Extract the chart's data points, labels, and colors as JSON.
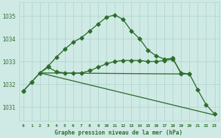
{
  "title": "Graphe pression niveau de la mer (hPa)",
  "background_color": "#cfe9e5",
  "grid_color": "#b0d4cc",
  "line_color": "#2d6e2d",
  "xlim": [
    -0.5,
    23.5
  ],
  "ylim": [
    1030.4,
    1035.6
  ],
  "yticks": [
    1031,
    1032,
    1033,
    1034,
    1035
  ],
  "series_main": {
    "x": [
      0,
      1,
      2,
      3,
      4,
      5,
      6,
      7,
      8,
      9,
      10,
      11,
      12,
      13,
      14,
      15,
      16,
      17,
      18,
      19,
      20,
      21,
      22,
      23
    ],
    "y": [
      1031.7,
      1032.1,
      1032.5,
      1032.8,
      1033.2,
      1033.55,
      1033.85,
      1034.05,
      1034.35,
      1034.65,
      1034.95,
      1035.05,
      1034.85,
      1034.35,
      1034.0,
      1033.5,
      1033.25,
      1033.1,
      1033.15,
      1032.45,
      1032.45,
      1031.75,
      1031.1,
      1030.7
    ]
  },
  "series_slow": {
    "x": [
      0,
      1,
      2,
      3,
      4,
      5,
      6,
      7,
      8,
      9,
      10,
      11,
      12,
      13,
      14,
      15,
      16,
      17,
      18,
      19,
      20
    ],
    "y": [
      1031.7,
      1032.1,
      1032.5,
      1032.75,
      1032.55,
      1032.5,
      1032.5,
      1032.5,
      1032.6,
      1032.75,
      1032.9,
      1033.0,
      1033.05,
      1033.05,
      1033.05,
      1033.0,
      1033.0,
      1033.05,
      1033.1,
      1032.5,
      1032.45
    ]
  },
  "line_diag": {
    "x": [
      2,
      23
    ],
    "y": [
      1032.5,
      1030.65
    ]
  },
  "line_flat": {
    "x": [
      2,
      20
    ],
    "y": [
      1032.5,
      1032.45
    ]
  },
  "figsize": [
    3.2,
    2.0
  ],
  "dpi": 100
}
